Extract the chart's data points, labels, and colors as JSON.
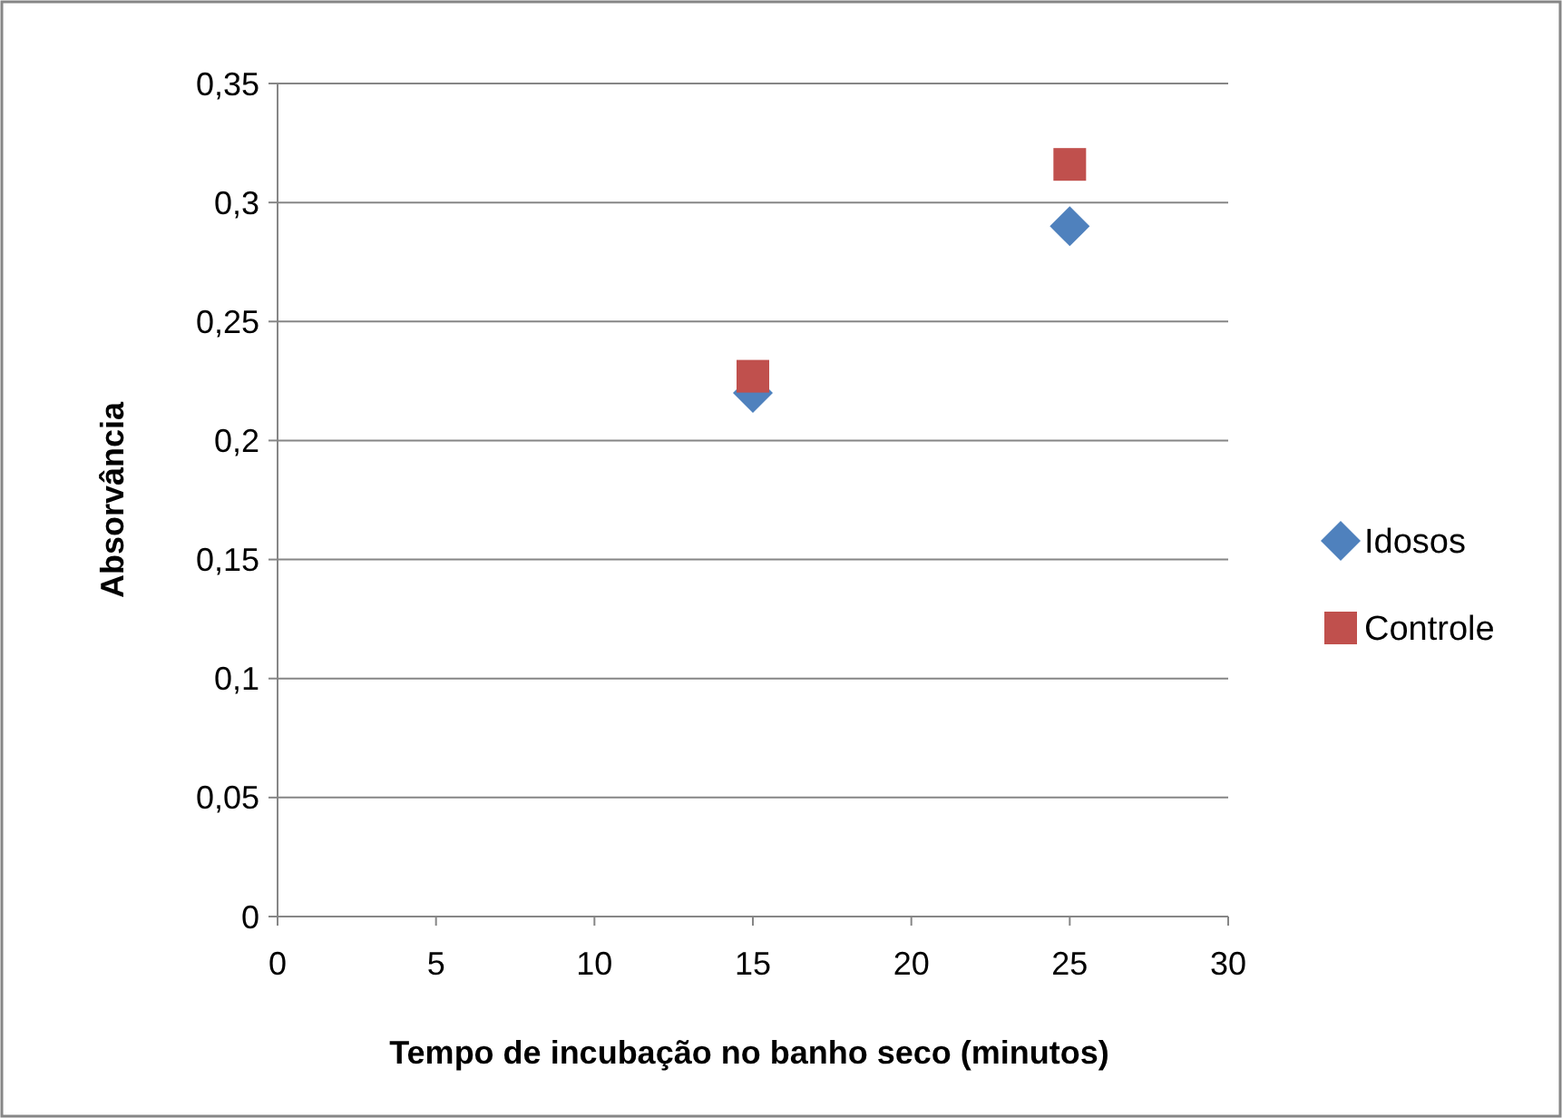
{
  "chart_data": {
    "type": "scatter",
    "xlabel": "Tempo de incubação no banho seco (minutos)",
    "ylabel": "Absorvância",
    "x": [
      15,
      25
    ],
    "series": [
      {
        "name": "Idosos",
        "color": "#4f81bd",
        "marker": "diamond",
        "values": [
          0.22,
          0.29
        ]
      },
      {
        "name": "Controle",
        "color": "#c0504d",
        "marker": "square",
        "values": [
          0.227,
          0.316
        ]
      }
    ],
    "xlim": [
      0,
      30
    ],
    "xticks": [
      0,
      5,
      10,
      15,
      20,
      25,
      30
    ],
    "ylim": [
      0,
      0.35
    ],
    "yticks": [
      {
        "value": 0,
        "label": "0"
      },
      {
        "value": 0.05,
        "label": "0,05"
      },
      {
        "value": 0.1,
        "label": "0,1"
      },
      {
        "value": 0.15,
        "label": "0,15"
      },
      {
        "value": 0.2,
        "label": "0,2"
      },
      {
        "value": 0.25,
        "label": "0,25"
      },
      {
        "value": 0.3,
        "label": "0,3"
      },
      {
        "value": 0.35,
        "label": "0,35"
      }
    ],
    "grid": "y",
    "legend": "right"
  }
}
